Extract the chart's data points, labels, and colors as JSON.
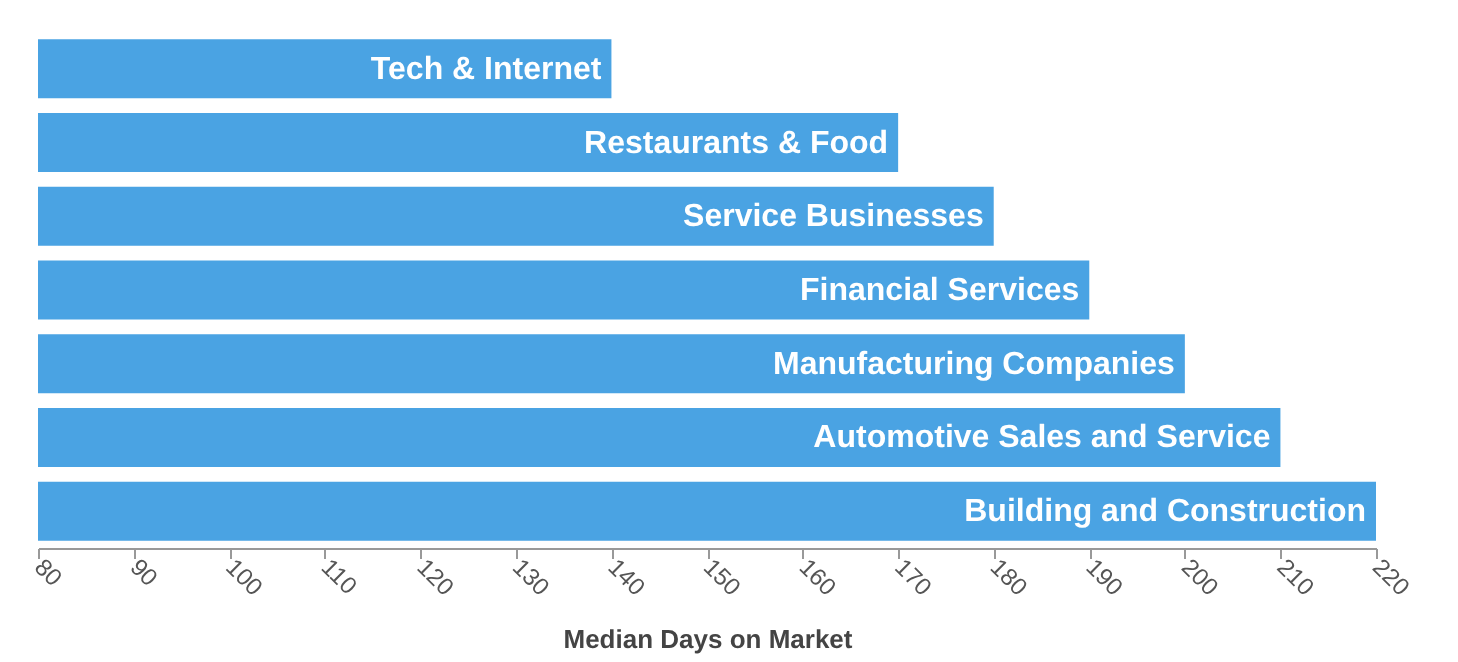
{
  "chart_data": {
    "type": "bar",
    "orientation": "horizontal",
    "xlabel": "Median Days on Market",
    "categories": [
      "Tech & Internet",
      "Restaurants & Food",
      "Service Businesses",
      "Financial Services",
      "Manufacturing Companies",
      "Automotive Sales and Service",
      "Building and Construction"
    ],
    "values": [
      140,
      170,
      180,
      190,
      200,
      210,
      220
    ],
    "color": "#4aa3e3",
    "xlim": [
      80,
      220
    ],
    "xticks": [
      80,
      90,
      100,
      110,
      120,
      130,
      140,
      150,
      160,
      170,
      180,
      190,
      200,
      210,
      220
    ],
    "grid": false
  }
}
